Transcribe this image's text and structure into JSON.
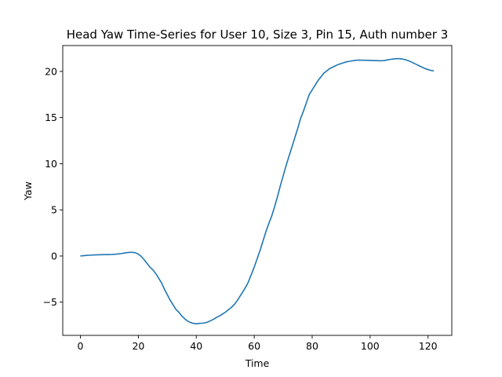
{
  "chart_data": {
    "type": "line",
    "title": "Head Yaw Time-Series for User 10, Size 3, Pin 15, Auth number 3",
    "xlabel": "Time",
    "ylabel": "Yaw",
    "xlim": [
      -6.1,
      128.2
    ],
    "ylim": [
      -8.6,
      22.8
    ],
    "xticks": [
      0,
      20,
      40,
      60,
      80,
      100,
      120
    ],
    "yticks": [
      -5,
      0,
      5,
      10,
      15,
      20
    ],
    "grid": false,
    "series_color": "#1f77b4",
    "series": [
      {
        "x": [
          0,
          1,
          2,
          3,
          4,
          5,
          6,
          7,
          8,
          9,
          10,
          11,
          12,
          13,
          14,
          15,
          16,
          17,
          18,
          19,
          20,
          21,
          22,
          23,
          24,
          25,
          26,
          27,
          28,
          29,
          30,
          31,
          32,
          33,
          34,
          35,
          36,
          37,
          38,
          39,
          40,
          41,
          42,
          43,
          44,
          45,
          46,
          47,
          48,
          49,
          50,
          51,
          52,
          53,
          54,
          55,
          56,
          57,
          58,
          59,
          60,
          61,
          62,
          63,
          64,
          65,
          66,
          67,
          68,
          69,
          70,
          71,
          72,
          73,
          74,
          75,
          76,
          77,
          78,
          79,
          80,
          81,
          82,
          83,
          84,
          85,
          86,
          87,
          88,
          89,
          90,
          91,
          92,
          93,
          94,
          95,
          96,
          97,
          98,
          99,
          100,
          101,
          102,
          103,
          104,
          105,
          106,
          107,
          108,
          109,
          110,
          111,
          112,
          113,
          114,
          115,
          116,
          117,
          118,
          119,
          120,
          121,
          122
        ],
        "values": [
          0.0,
          0.03,
          0.06,
          0.08,
          0.1,
          0.12,
          0.13,
          0.14,
          0.15,
          0.15,
          0.16,
          0.17,
          0.19,
          0.22,
          0.26,
          0.31,
          0.36,
          0.39,
          0.4,
          0.35,
          0.2,
          -0.05,
          -0.4,
          -0.8,
          -1.2,
          -1.5,
          -1.9,
          -2.4,
          -2.9,
          -3.6,
          -4.2,
          -4.8,
          -5.3,
          -5.8,
          -6.1,
          -6.5,
          -6.8,
          -7.05,
          -7.2,
          -7.3,
          -7.35,
          -7.3,
          -7.28,
          -7.25,
          -7.15,
          -7.0,
          -6.85,
          -6.65,
          -6.5,
          -6.3,
          -6.1,
          -5.85,
          -5.6,
          -5.3,
          -4.9,
          -4.4,
          -3.9,
          -3.4,
          -2.8,
          -2.0,
          -1.2,
          -0.3,
          0.6,
          1.6,
          2.6,
          3.5,
          4.3,
          5.3,
          6.4,
          7.6,
          8.7,
          9.8,
          10.8,
          11.8,
          12.8,
          13.8,
          14.9,
          15.7,
          16.6,
          17.5,
          18.0,
          18.5,
          19.0,
          19.4,
          19.8,
          20.05,
          20.3,
          20.45,
          20.6,
          20.75,
          20.85,
          20.95,
          21.05,
          21.1,
          21.15,
          21.2,
          21.22,
          21.22,
          21.21,
          21.2,
          21.19,
          21.18,
          21.17,
          21.16,
          21.15,
          21.18,
          21.25,
          21.3,
          21.35,
          21.38,
          21.38,
          21.35,
          21.28,
          21.18,
          21.05,
          20.9,
          20.75,
          20.6,
          20.45,
          20.3,
          20.2,
          20.1,
          20.05
        ]
      }
    ]
  }
}
